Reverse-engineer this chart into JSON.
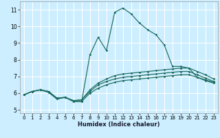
{
  "xlabel": "Humidex (Indice chaleur)",
  "bg_color": "#cceeff",
  "grid_color": "#ffffff",
  "line_color": "#1a6b5e",
  "xlim": [
    -0.5,
    23.5
  ],
  "ylim": [
    4.8,
    11.5
  ],
  "xticks": [
    0,
    1,
    2,
    3,
    4,
    5,
    6,
    7,
    8,
    9,
    10,
    11,
    12,
    13,
    14,
    15,
    16,
    17,
    18,
    19,
    20,
    21,
    22,
    23
  ],
  "yticks": [
    5,
    6,
    7,
    8,
    9,
    10,
    11
  ],
  "series": [
    [
      5.9,
      6.1,
      6.2,
      6.1,
      5.7,
      5.75,
      5.5,
      5.5,
      6.0,
      6.3,
      6.5,
      6.65,
      6.75,
      6.8,
      6.85,
      6.9,
      6.95,
      7.0,
      7.05,
      7.1,
      7.1,
      6.95,
      6.8,
      6.65
    ],
    [
      5.9,
      6.1,
      6.2,
      6.1,
      5.7,
      5.75,
      5.55,
      5.6,
      6.1,
      6.5,
      6.7,
      6.85,
      6.95,
      7.0,
      7.05,
      7.1,
      7.15,
      7.2,
      7.25,
      7.3,
      7.3,
      7.1,
      6.9,
      6.7
    ],
    [
      5.9,
      6.1,
      6.2,
      6.05,
      5.65,
      5.75,
      5.55,
      5.6,
      6.2,
      6.6,
      6.85,
      7.05,
      7.15,
      7.2,
      7.25,
      7.3,
      7.35,
      7.4,
      7.45,
      7.5,
      7.5,
      7.3,
      7.1,
      6.85
    ],
    [
      5.9,
      6.1,
      6.2,
      6.05,
      5.65,
      5.75,
      5.5,
      5.5,
      8.3,
      9.35,
      8.55,
      10.85,
      11.1,
      10.75,
      10.2,
      9.8,
      9.5,
      8.9,
      7.6,
      7.6,
      7.5,
      6.95,
      6.75,
      6.6
    ]
  ]
}
